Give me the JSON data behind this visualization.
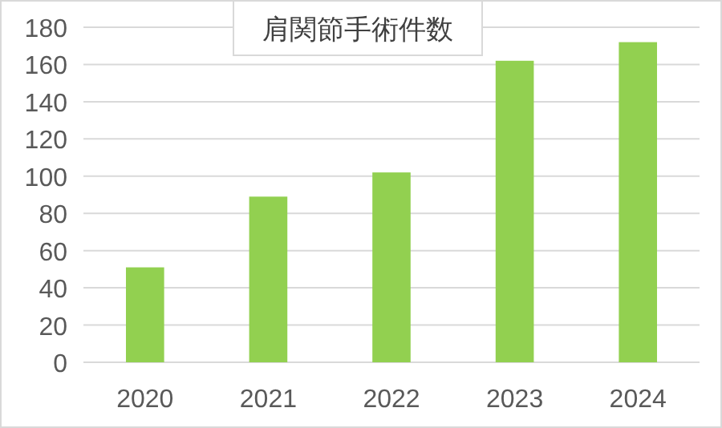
{
  "chart_data": {
    "type": "bar",
    "title": "肩関節手術件数",
    "categories": [
      "2020",
      "2021",
      "2022",
      "2023",
      "2024"
    ],
    "values": [
      51,
      89,
      102,
      162,
      172
    ],
    "color": "#92d050",
    "ylim": [
      0,
      180
    ],
    "yticks": [
      0,
      20,
      40,
      60,
      80,
      100,
      120,
      140,
      160,
      180
    ],
    "grid": "y"
  }
}
